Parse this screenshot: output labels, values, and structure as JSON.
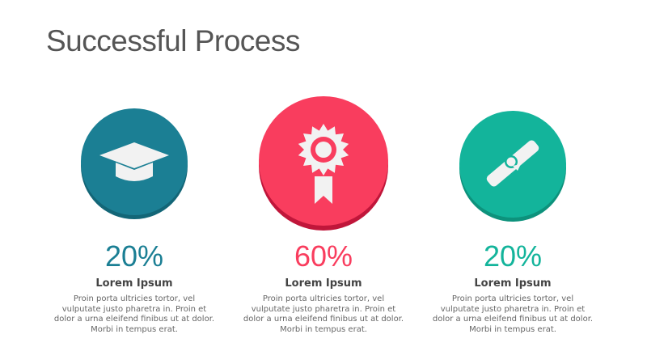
{
  "title": "Successful Process",
  "items": [
    {
      "icon": "graduation-cap-icon",
      "percent": "20%",
      "heading": "Lorem Ipsum",
      "body": "Proin porta ultricies tortor, vel vulputate justo pharetra in. Proin et dolor a urna eleifend finibus ut at dolor. Morbi in tempus erat.",
      "color": "#1b7f94",
      "shadow": "#136677"
    },
    {
      "icon": "award-ribbon-icon",
      "percent": "60%",
      "heading": "Lorem Ipsum",
      "body": "Proin porta ultricies tortor, vel vulputate justo pharetra in. Proin et dolor a urna eleifend finibus ut at dolor. Morbi in tempus erat.",
      "color": "#f93d5e",
      "shadow": "#c0163a"
    },
    {
      "icon": "diploma-scroll-icon",
      "percent": "20%",
      "heading": "Lorem Ipsum",
      "body": "Proin porta ultricies tortor, vel vulputate justo pharetra in. Proin et dolor a urna eleifend finibus ut at dolor. Morbi in tempus erat.",
      "color": "#13b49b",
      "shadow": "#0d927c"
    }
  ]
}
